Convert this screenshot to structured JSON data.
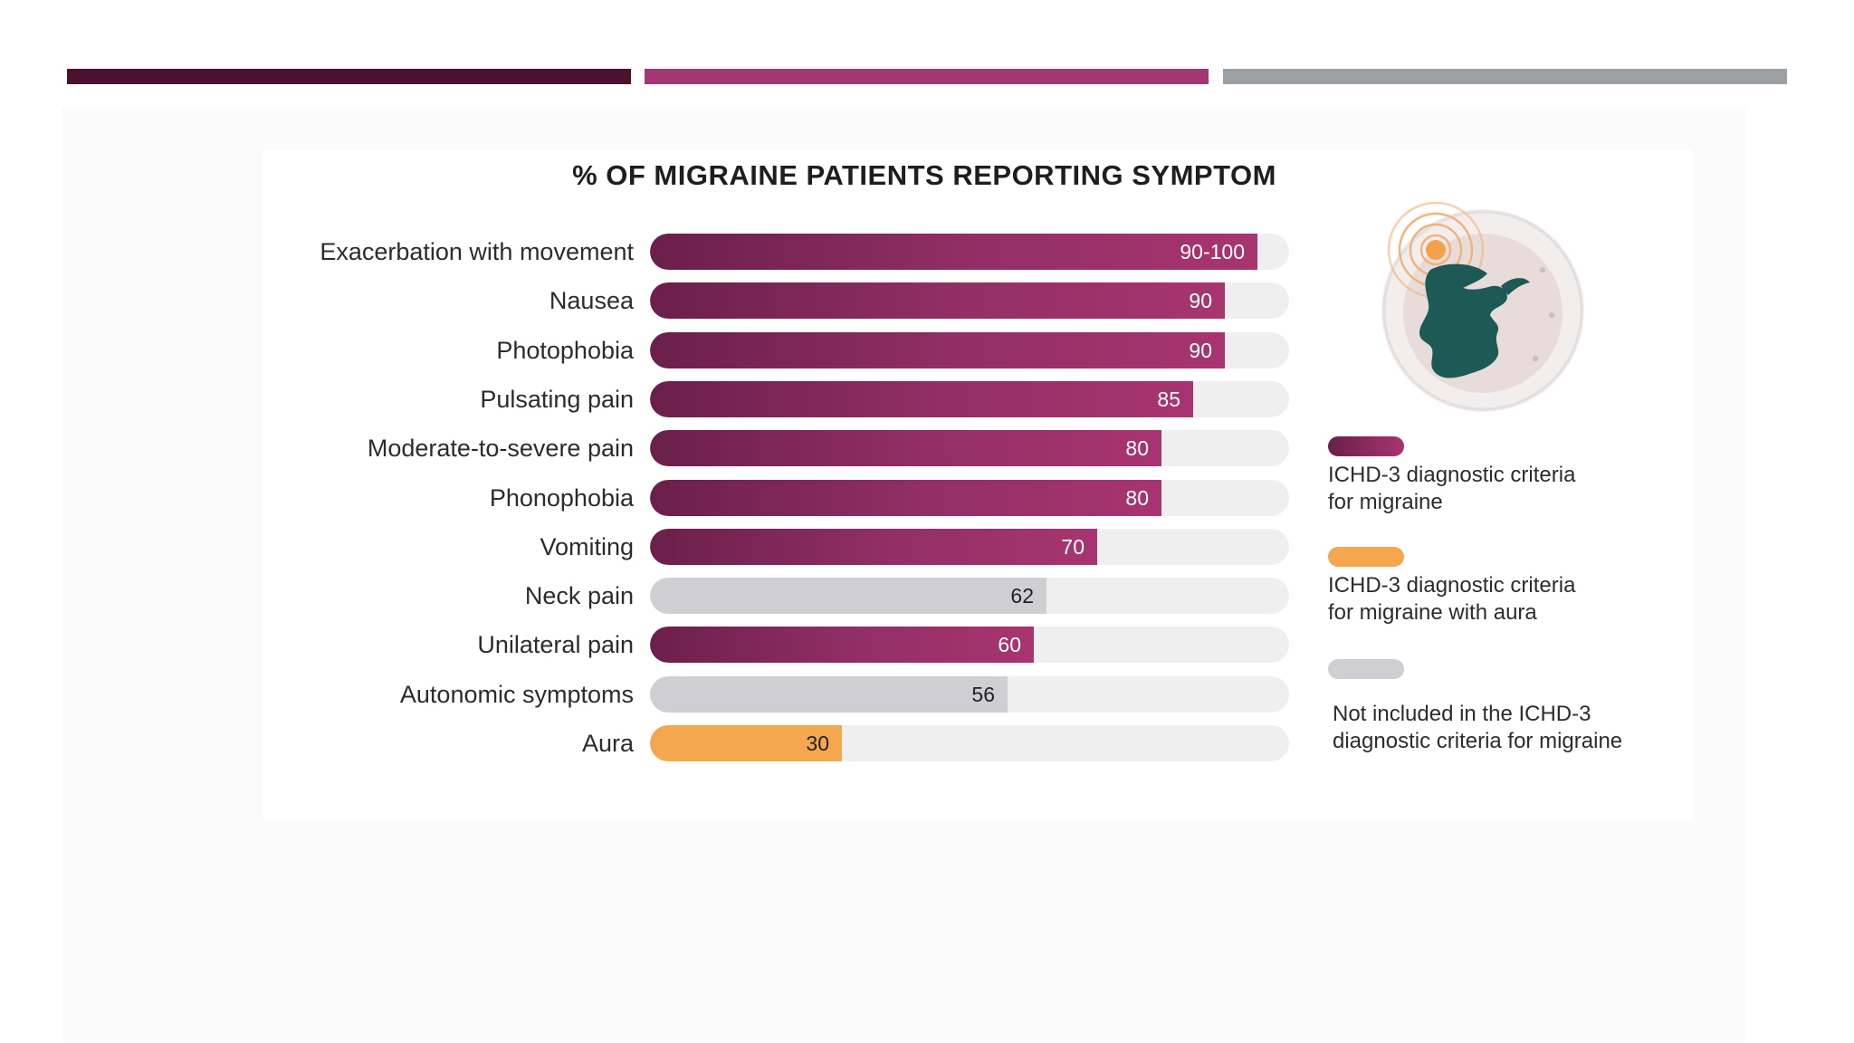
{
  "colors": {
    "bar_seg_1": "#4a1131",
    "bar_seg_2": "#a33774",
    "bar_seg_3": "#9aa0a3",
    "criteria_migraine": "#8a2a5e",
    "criteria_aura": "#f4a74e",
    "not_included": "#cfcfd3"
  },
  "chart_data": {
    "type": "bar",
    "orientation": "horizontal",
    "title": "% OF MIGRAINE PATIENTS REPORTING SYMPTOM",
    "xlim": [
      0,
      100
    ],
    "categories": [
      "Exacerbation with movement",
      "Nausea",
      "Photophobia",
      "Pulsating pain",
      "Moderate-to-severe pain",
      "Phonophobia",
      "Vomiting",
      "Neck pain",
      "Unilateral pain",
      "Autonomic symptoms",
      "Aura"
    ],
    "values": [
      95,
      90,
      90,
      85,
      80,
      80,
      70,
      62,
      60,
      56,
      30
    ],
    "value_labels": [
      "90-100",
      "90",
      "90",
      "85",
      "80",
      "80",
      "70",
      "62",
      "60",
      "56",
      "30"
    ],
    "groups": [
      "criteria",
      "criteria",
      "criteria",
      "criteria",
      "criteria",
      "criteria",
      "criteria",
      "none",
      "criteria",
      "none",
      "aura"
    ],
    "legend": [
      {
        "group": "criteria",
        "label": "ICHD-3 diagnostic criteria for migraine",
        "lines": [
          "ICHD-3 diagnostic criteria",
          "for migraine"
        ]
      },
      {
        "group": "aura",
        "label": "ICHD-3 diagnostic criteria for migraine with aura",
        "lines": [
          "ICHD-3 diagnostic criteria",
          "for migraine with aura"
        ]
      },
      {
        "group": "none",
        "label": "Not included in the ICHD-3 diagnostic criteria for migraine",
        "lines": [
          "Not included in the ICHD-3",
          "diagnostic criteria for migraine"
        ]
      }
    ],
    "legend_position": "right",
    "grid": false
  },
  "illustration": {
    "icon": "head-pain-icon"
  }
}
